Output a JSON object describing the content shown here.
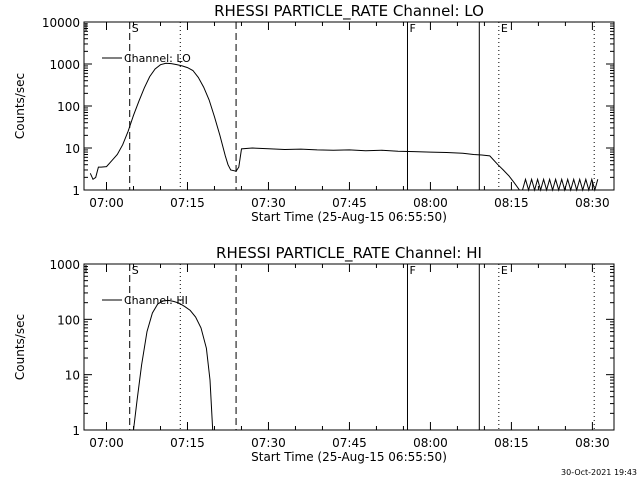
{
  "footer_date": "30-Oct-2021 19:43",
  "chart_data": [
    {
      "type": "line",
      "title": "RHESSI PARTICLE_RATE Channel: LO",
      "xlabel": "Start Time (25-Aug-15 06:55:50)",
      "ylabel": "Counts/sec",
      "yscale": "log",
      "ylim": [
        1,
        10000
      ],
      "xlim": [
        "06:55:50",
        "08:34:00"
      ],
      "x_ticks": [
        "07:00",
        "07:15",
        "07:30",
        "07:45",
        "08:00",
        "08:15",
        "08:30"
      ],
      "y_ticks": [
        "1",
        "10",
        "100",
        "1000",
        "10000"
      ],
      "legend": "top-left",
      "series": [
        {
          "name": "Channel: LO",
          "points": [
            [
              "06:57:00",
              2.5
            ],
            [
              "06:57:30",
              1.8
            ],
            [
              "06:58:00",
              2.0
            ],
            [
              "06:58:30",
              3.5
            ],
            [
              "06:59:00",
              3.5
            ],
            [
              "07:00:00",
              3.6
            ],
            [
              "07:01:00",
              5.0
            ],
            [
              "07:02:00",
              7.0
            ],
            [
              "07:03:00",
              12
            ],
            [
              "07:04:00",
              25
            ],
            [
              "07:05:00",
              60
            ],
            [
              "07:06:00",
              130
            ],
            [
              "07:07:00",
              270
            ],
            [
              "07:08:00",
              500
            ],
            [
              "07:09:00",
              760
            ],
            [
              "07:10:00",
              960
            ],
            [
              "07:11:00",
              1040
            ],
            [
              "07:12:00",
              1020
            ],
            [
              "07:13:00",
              970
            ],
            [
              "07:14:00",
              900
            ],
            [
              "07:15:00",
              820
            ],
            [
              "07:16:00",
              700
            ],
            [
              "07:17:00",
              480
            ],
            [
              "07:18:00",
              280
            ],
            [
              "07:19:00",
              140
            ],
            [
              "07:20:00",
              55
            ],
            [
              "07:21:00",
              20
            ],
            [
              "07:22:00",
              6.5
            ],
            [
              "07:22:30",
              4.0
            ],
            [
              "07:23:00",
              3.0
            ],
            [
              "07:24:00",
              2.8
            ],
            [
              "07:24:30",
              3.5
            ],
            [
              "07:25:00",
              9.5
            ],
            [
              "07:27:00",
              10
            ],
            [
              "07:30:00",
              9.6
            ],
            [
              "07:33:00",
              9.2
            ],
            [
              "07:36:00",
              9.4
            ],
            [
              "07:39:00",
              9.0
            ],
            [
              "07:42:00",
              8.8
            ],
            [
              "07:45:00",
              9.0
            ],
            [
              "07:48:00",
              8.6
            ],
            [
              "07:51:00",
              8.8
            ],
            [
              "07:54:00",
              8.4
            ],
            [
              "07:57:00",
              8.2
            ],
            [
              "08:00:00",
              8.0
            ],
            [
              "08:03:00",
              7.8
            ],
            [
              "08:06:00",
              7.5
            ],
            [
              "08:08:00",
              7.0
            ],
            [
              "08:09:30",
              6.8
            ],
            [
              "08:11:00",
              6.5
            ],
            [
              "08:12:30",
              4.0
            ],
            [
              "08:13:30",
              3.0
            ],
            [
              "08:14:30",
              2.2
            ],
            [
              "08:15:30",
              1.5
            ],
            [
              "08:16:30",
              1.0
            ]
          ],
          "noise_segment": {
            "start": "08:16:30",
            "end": "08:31:00",
            "low": 0.7,
            "high": 1.8
          }
        }
      ],
      "vlines": [
        {
          "label": "F",
          "time": "07:55:45",
          "style": "solid"
        },
        {
          "label": "",
          "time": "08:09:03",
          "style": "solid"
        },
        {
          "label": "S",
          "time": "07:04:18",
          "style": "dashed"
        },
        {
          "label": "",
          "time": "07:24:00",
          "style": "dashed"
        },
        {
          "label": "",
          "time": "07:13:40",
          "style": "dotted"
        },
        {
          "label": "E",
          "time": "08:12:40",
          "style": "dotted"
        },
        {
          "label": "",
          "time": "08:30:20",
          "style": "dotted"
        }
      ]
    },
    {
      "type": "line",
      "title": "RHESSI PARTICLE_RATE Channel: HI",
      "xlabel": "Start Time (25-Aug-15 06:55:50)",
      "ylabel": "Counts/sec",
      "yscale": "log",
      "ylim": [
        1,
        1000
      ],
      "xlim": [
        "06:55:50",
        "08:34:00"
      ],
      "x_ticks": [
        "07:00",
        "07:15",
        "07:30",
        "07:45",
        "08:00",
        "08:15",
        "08:30"
      ],
      "y_ticks": [
        "1",
        "10",
        "100",
        "1000"
      ],
      "legend": "top-left",
      "series": [
        {
          "name": "Channel: HI",
          "points": [
            [
              "07:05:00",
              1.0
            ],
            [
              "07:05:40",
              3.5
            ],
            [
              "07:06:30",
              15
            ],
            [
              "07:07:30",
              60
            ],
            [
              "07:08:30",
              130
            ],
            [
              "07:09:30",
              190
            ],
            [
              "07:10:30",
              215
            ],
            [
              "07:11:30",
              220
            ],
            [
              "07:12:30",
              210
            ],
            [
              "07:13:30",
              195
            ],
            [
              "07:14:30",
              170
            ],
            [
              "07:15:30",
              145
            ],
            [
              "07:16:30",
              110
            ],
            [
              "07:17:30",
              70
            ],
            [
              "07:18:30",
              30
            ],
            [
              "07:19:10",
              8
            ],
            [
              "07:19:40",
              1.0
            ]
          ]
        }
      ],
      "vlines": [
        {
          "label": "F",
          "time": "07:55:45",
          "style": "solid"
        },
        {
          "label": "",
          "time": "08:09:03",
          "style": "solid"
        },
        {
          "label": "S",
          "time": "07:04:18",
          "style": "dashed"
        },
        {
          "label": "",
          "time": "07:24:00",
          "style": "dashed"
        },
        {
          "label": "",
          "time": "07:13:40",
          "style": "dotted"
        },
        {
          "label": "E",
          "time": "08:12:40",
          "style": "dotted"
        },
        {
          "label": "",
          "time": "08:30:20",
          "style": "dotted"
        }
      ]
    }
  ]
}
